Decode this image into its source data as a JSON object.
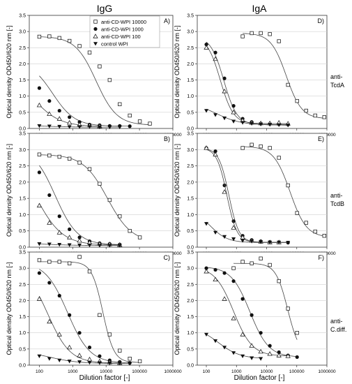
{
  "figure": {
    "column_titles": [
      "IgG",
      "IgA"
    ],
    "row_labels": [
      [
        "anti-",
        "TcdA"
      ],
      [
        "anti-",
        "TcdB"
      ],
      [
        "anti-",
        "C.diff."
      ]
    ],
    "x_label": "Dilution factor [-]",
    "legend": [
      {
        "label": "anti-CD-WPI 10000",
        "marker": "open-square"
      },
      {
        "label": "anti-CD-WPI 1000",
        "marker": "filled-circle"
      },
      {
        "label": "anti-CD-WPI 100",
        "marker": "open-triangle"
      },
      {
        "label": "control WPI",
        "marker": "filled-down-triangle"
      }
    ]
  },
  "chart_data": [
    {
      "panel": "A)",
      "type": "scatter",
      "antibody": "IgG",
      "target": "anti-TcdA",
      "ylabel": "Optical density OD450/620 nm [-]",
      "ylim": [
        0,
        3.5
      ],
      "xlim": [
        50,
        1000000
      ],
      "xscale": "log",
      "x_ticks": [
        "100",
        "1000",
        "10000",
        "100000",
        "1000000"
      ],
      "y_ticks": [
        "0.0",
        "0.5",
        "1.0",
        "1.5",
        "2.0",
        "2.5",
        "3.0",
        "3.5"
      ],
      "series": [
        {
          "name": "anti-CD-WPI 10000",
          "x": [
            100,
            200,
            400,
            800,
            1600,
            3200,
            6400,
            12800,
            25600,
            51200,
            102400,
            204800
          ],
          "y": [
            2.84,
            2.85,
            2.8,
            2.71,
            2.55,
            2.35,
            1.92,
            1.5,
            0.75,
            0.4,
            0.22,
            0.15
          ],
          "fit": [
            0.1,
            2.85,
            5000,
            1.4
          ]
        },
        {
          "name": "anti-CD-WPI 1000",
          "x": [
            100,
            200,
            400,
            800,
            1600,
            3200,
            6400,
            12800,
            25600,
            51200
          ],
          "y": [
            1.25,
            0.85,
            0.55,
            0.35,
            0.2,
            0.12,
            0.1,
            0.08,
            0.08,
            0.07
          ],
          "fit": [
            0.07,
            2.1,
            250,
            1.3
          ]
        },
        {
          "name": "anti-CD-WPI 100",
          "x": [
            100,
            200,
            400,
            800,
            1600,
            3200,
            6400
          ],
          "y": [
            0.72,
            0.45,
            0.3,
            0.18,
            0.12,
            0.09,
            0.07
          ],
          "fit": [
            0.06,
            1.8,
            65,
            1.1
          ]
        },
        {
          "name": "control WPI",
          "x": [
            100,
            200,
            400,
            800,
            1600,
            3200,
            6400,
            12800,
            25600
          ],
          "y": [
            0.08,
            0.07,
            0.06,
            0.05,
            0.05,
            0.05,
            0.04,
            0.04,
            0.04
          ],
          "fit": [
            0.04,
            0.1,
            150,
            1
          ]
        }
      ]
    },
    {
      "panel": "D)",
      "type": "scatter",
      "antibody": "IgA",
      "target": "anti-TcdA",
      "ylabel": "Optical density OD450/620 nm [-]",
      "ylim": [
        0,
        3.5
      ],
      "xlim": [
        50,
        1000000
      ],
      "xscale": "log",
      "x_ticks": [
        "100",
        "1000",
        "10000",
        "100000",
        "1000000"
      ],
      "y_ticks": [
        "0.0",
        "0.5",
        "1.0",
        "1.5",
        "2.0",
        "2.5",
        "3.0",
        "3.5"
      ],
      "series": [
        {
          "name": "anti-CD-WPI 10000",
          "x": [
            1600,
            3200,
            6400,
            12800,
            25600,
            51200,
            102400,
            204800,
            409600,
            819200
          ],
          "y": [
            2.85,
            2.95,
            2.95,
            2.92,
            2.7,
            1.35,
            0.85,
            0.55,
            0.4,
            0.35
          ],
          "fit": [
            0.3,
            2.95,
            45000,
            1.7
          ]
        },
        {
          "name": "anti-CD-WPI 1000",
          "x": [
            100,
            200,
            400,
            800,
            1600,
            3200,
            6400,
            12800,
            25600,
            51200
          ],
          "y": [
            2.6,
            2.35,
            1.55,
            0.7,
            0.3,
            0.2,
            0.15,
            0.14,
            0.13,
            0.12
          ],
          "fit": [
            0.12,
            2.85,
            380,
            2
          ]
        },
        {
          "name": "anti-CD-WPI 100",
          "x": [
            100,
            200,
            400,
            800,
            1600,
            3200,
            6400,
            12800,
            25600,
            51200
          ],
          "y": [
            2.5,
            2.15,
            1.15,
            0.5,
            0.25,
            0.18,
            0.16,
            0.16,
            0.18,
            0.15
          ],
          "fit": [
            0.15,
            2.85,
            290,
            2
          ]
        },
        {
          "name": "control WPI",
          "x": [
            100,
            200,
            400,
            800,
            1600,
            3200,
            6400,
            12800,
            25600,
            51200
          ],
          "y": [
            0.55,
            0.42,
            0.32,
            0.22,
            0.18,
            0.15,
            0.13,
            0.12,
            0.11,
            0.1
          ],
          "fit": [
            0.1,
            0.85,
            200,
            1
          ]
        }
      ]
    },
    {
      "panel": "B)",
      "type": "scatter",
      "antibody": "IgG",
      "target": "anti-TcdB",
      "ylabel": "Optical density OD450/620 nm [-]",
      "ylim": [
        0,
        3.5
      ],
      "xlim": [
        50,
        1000000
      ],
      "xscale": "log",
      "x_ticks": [
        "100",
        "1000",
        "10000",
        "100000",
        "1000000"
      ],
      "y_ticks": [
        "0.0",
        "0.5",
        "1.0",
        "1.5",
        "2.0",
        "2.5",
        "3.0",
        "3.5"
      ],
      "series": [
        {
          "name": "anti-CD-WPI 10000",
          "x": [
            100,
            200,
            400,
            800,
            1600,
            3200,
            6400,
            12800,
            25600,
            51200,
            102400
          ],
          "y": [
            2.85,
            2.82,
            2.78,
            2.72,
            2.6,
            2.4,
            1.95,
            1.45,
            0.95,
            0.5,
            0.3
          ],
          "fit": [
            0.15,
            2.85,
            11000,
            1.2
          ]
        },
        {
          "name": "anti-CD-WPI 1000",
          "x": [
            100,
            200,
            400,
            800,
            1600,
            3200,
            6400,
            12800,
            25600
          ],
          "y": [
            2.3,
            1.6,
            0.95,
            0.55,
            0.3,
            0.18,
            0.12,
            0.1,
            0.08
          ],
          "fit": [
            0.07,
            3.1,
            300,
            1.3
          ]
        },
        {
          "name": "anti-CD-WPI 100",
          "x": [
            100,
            200,
            400,
            800,
            1600,
            3200,
            6400,
            12800,
            25600
          ],
          "y": [
            1.28,
            0.75,
            0.45,
            0.3,
            0.2,
            0.14,
            0.1,
            0.09,
            0.07
          ],
          "fit": [
            0.06,
            3,
            80,
            1.1
          ]
        },
        {
          "name": "control WPI",
          "x": [
            100,
            200,
            400,
            800,
            1600,
            3200,
            6400,
            12800,
            25600
          ],
          "y": [
            0.1,
            0.09,
            0.08,
            0.07,
            0.06,
            0.06,
            0.05,
            0.05,
            0.05
          ],
          "fit": [
            0.05,
            0.12,
            200,
            1
          ]
        }
      ]
    },
    {
      "panel": "E)",
      "type": "scatter",
      "antibody": "IgA",
      "target": "anti-TcdB",
      "ylabel": "Optical density OD450/620 nm [-]",
      "ylim": [
        0,
        3.5
      ],
      "xlim": [
        50,
        1000000
      ],
      "xscale": "log",
      "x_ticks": [
        "100",
        "1000",
        "10000",
        "100000",
        "1000000"
      ],
      "y_ticks": [
        "0.0",
        "0.5",
        "1.0",
        "1.5",
        "2.0",
        "2.5",
        "3.0",
        "3.5"
      ],
      "series": [
        {
          "name": "anti-CD-WPI 10000",
          "x": [
            1600,
            3200,
            6400,
            12800,
            25600,
            51200,
            102400,
            204800,
            409600,
            819200
          ],
          "y": [
            3.05,
            3.15,
            3.1,
            3.05,
            2.75,
            1.9,
            1.05,
            0.75,
            0.48,
            0.35
          ],
          "fit": [
            0.3,
            3.1,
            60000,
            1.6
          ]
        },
        {
          "name": "anti-CD-WPI 1000",
          "x": [
            100,
            200,
            400,
            800,
            1600,
            3200,
            6400,
            12800,
            25600,
            51200
          ],
          "y": [
            3.05,
            2.95,
            1.9,
            0.8,
            0.35,
            0.22,
            0.18,
            0.16,
            0.15,
            0.14
          ],
          "fit": [
            0.15,
            3.05,
            560,
            2.6
          ]
        },
        {
          "name": "anti-CD-WPI 100",
          "x": [
            100,
            200,
            400,
            800,
            1600,
            3200,
            6400,
            12800,
            25600
          ],
          "y": [
            3.05,
            2.85,
            1.7,
            0.6,
            0.3,
            0.2,
            0.17,
            0.15,
            0.15
          ],
          "fit": [
            0.15,
            3.05,
            480,
            2.6
          ]
        },
        {
          "name": "control WPI",
          "x": [
            100,
            200,
            400,
            800,
            1600,
            3200,
            6400,
            12800,
            25600,
            51200
          ],
          "y": [
            0.72,
            0.45,
            0.32,
            0.25,
            0.2,
            0.18,
            0.16,
            0.15,
            0.15,
            0.14
          ],
          "fit": [
            0.14,
            1.2,
            130,
            1.5
          ]
        }
      ]
    },
    {
      "panel": "C)",
      "type": "scatter",
      "antibody": "IgG",
      "target": "anti-C.diff.",
      "ylabel": "Optical density OD450/620 nm [-]",
      "ylim": [
        0,
        3.5
      ],
      "xlim": [
        50,
        1000000
      ],
      "xscale": "log",
      "x_ticks": [
        "100",
        "1000",
        "10000",
        "100000",
        "1000000"
      ],
      "y_ticks": [
        "0.0",
        "0.5",
        "1.0",
        "1.5",
        "2.0",
        "2.5",
        "3.0",
        "3.5"
      ],
      "series": [
        {
          "name": "anti-CD-WPI 10000",
          "x": [
            100,
            200,
            400,
            800,
            1600,
            3200,
            6400,
            12800,
            25600,
            51200,
            102400
          ],
          "y": [
            3.25,
            3.2,
            3.2,
            3.15,
            3.35,
            2.9,
            1.55,
            0.95,
            0.45,
            0.2,
            0.12
          ],
          "fit": [
            0.08,
            3.2,
            8000,
            2.6
          ]
        },
        {
          "name": "anti-CD-WPI 1000",
          "x": [
            100,
            200,
            400,
            800,
            1600,
            3200,
            6400,
            12800,
            25600,
            51200
          ],
          "y": [
            2.85,
            2.55,
            2.15,
            1.55,
            1.0,
            0.55,
            0.28,
            0.15,
            0.1,
            0.07
          ],
          "fit": [
            0.06,
            3.2,
            700,
            1.3
          ]
        },
        {
          "name": "anti-CD-WPI 100",
          "x": [
            100,
            200,
            400,
            800,
            1600,
            3200,
            6400,
            12800,
            25600
          ],
          "y": [
            2.05,
            1.35,
            0.95,
            0.55,
            0.3,
            0.18,
            0.12,
            0.09,
            0.07
          ],
          "fit": [
            0.06,
            3.1,
            180,
            1.3
          ]
        },
        {
          "name": "control WPI",
          "x": [
            100,
            200,
            400,
            800,
            1600,
            3200,
            6400,
            12800,
            25600,
            51200
          ],
          "y": [
            0.28,
            0.2,
            0.15,
            0.12,
            0.1,
            0.08,
            0.07,
            0.06,
            0.06,
            0.05
          ],
          "fit": [
            0.05,
            0.45,
            200,
            1
          ]
        }
      ]
    },
    {
      "panel": "F)",
      "type": "scatter",
      "antibody": "IgA",
      "target": "anti-C.diff.",
      "ylabel": "Optical density OD450/620 nm [-]",
      "ylim": [
        0,
        3.5
      ],
      "xlim": [
        50,
        1000000
      ],
      "xscale": "log",
      "x_ticks": [
        "100",
        "1000",
        "10000",
        "100000",
        "1000000"
      ],
      "y_ticks": [
        "0.0",
        "0.5",
        "1.0",
        "1.5",
        "2.0",
        "2.5",
        "3.0",
        "3.5"
      ],
      "series": [
        {
          "name": "anti-CD-WPI 10000",
          "x": [
            800,
            1600,
            3200,
            6400,
            12800,
            25600,
            51200,
            102400
          ],
          "y": [
            3.0,
            3.2,
            3.15,
            3.3,
            3.1,
            2.6,
            1.75,
            1.0
          ],
          "fit": [
            0.3,
            3.15,
            50000,
            2.2
          ]
        },
        {
          "name": "anti-CD-WPI 1000",
          "x": [
            100,
            200,
            400,
            800,
            1600,
            3200,
            6400,
            12800,
            25600,
            51200,
            102400
          ],
          "y": [
            3.0,
            2.95,
            2.85,
            2.6,
            2.05,
            1.55,
            1.0,
            0.6,
            0.4,
            0.3,
            0.25
          ],
          "fit": [
            0.25,
            3.05,
            2800,
            1.4
          ]
        },
        {
          "name": "anti-CD-WPI 100",
          "x": [
            100,
            200,
            400,
            800,
            1600,
            3200,
            6400,
            12800,
            25600,
            51200
          ],
          "y": [
            2.9,
            2.65,
            2.05,
            1.45,
            0.95,
            0.6,
            0.42,
            0.35,
            0.3,
            0.28
          ],
          "fit": [
            0.28,
            3.05,
            800,
            1.4
          ]
        },
        {
          "name": "control WPI",
          "x": [
            100,
            200,
            400,
            800,
            1600,
            3200,
            6400
          ],
          "y": [
            0.95,
            0.75,
            0.55,
            0.38,
            0.28,
            0.22,
            0.2
          ],
          "fit": [
            0.2,
            1.2,
            250,
            1.2
          ]
        }
      ]
    }
  ]
}
